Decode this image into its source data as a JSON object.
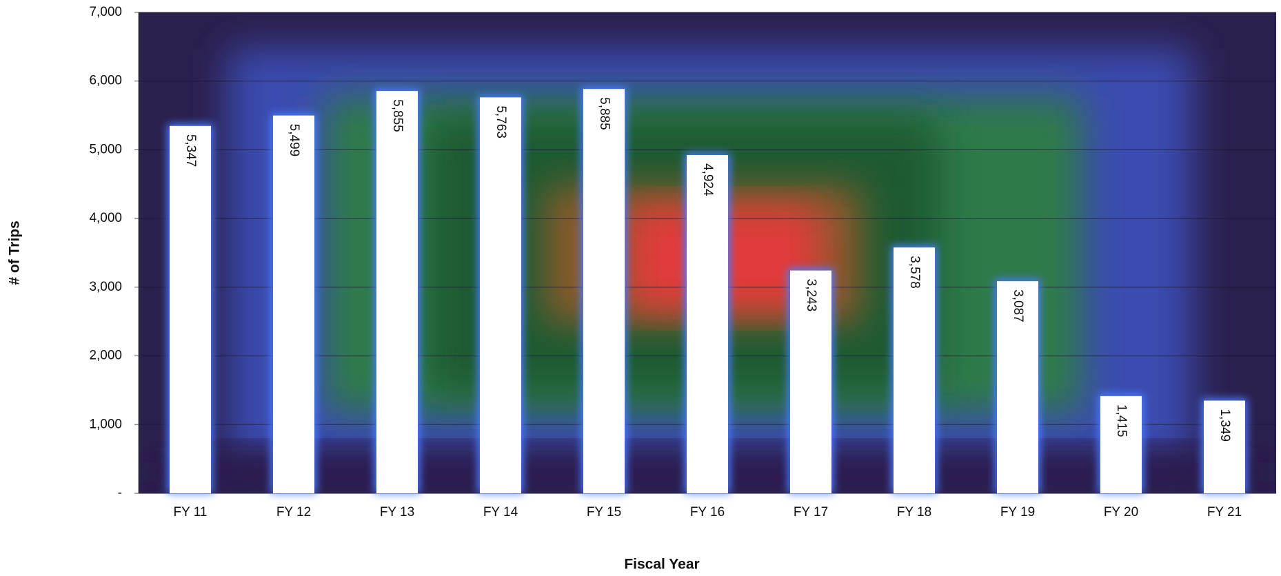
{
  "chart_data": {
    "type": "bar",
    "x_label": "Fiscal Year",
    "y_label": "# of Trips",
    "categories": [
      "FY 11",
      "FY 12",
      "FY 13",
      "FY 14",
      "FY 15",
      "FY 16",
      "FY 17",
      "FY 18",
      "FY 19",
      "FY 20",
      "FY 21"
    ],
    "values": [
      5347,
      5499,
      5855,
      5763,
      5885,
      4924,
      3243,
      3578,
      3087,
      1415,
      1349
    ],
    "value_labels": [
      "5,347",
      "5,499",
      "5,855",
      "5,763",
      "5,885",
      "4,924",
      "3,243",
      "3,578",
      "3,087",
      "1,415",
      "1,349"
    ],
    "color": "#ffffff",
    "ylim": [
      0,
      7000
    ],
    "yticks": [
      {
        "value": 0,
        "label": "-"
      },
      {
        "value": 1000,
        "label": "1,000"
      },
      {
        "value": 2000,
        "label": "2,000"
      },
      {
        "value": 3000,
        "label": "3,000"
      },
      {
        "value": 4000,
        "label": "4,000"
      },
      {
        "value": 5000,
        "label": "5,000"
      },
      {
        "value": 6000,
        "label": "6,000"
      },
      {
        "value": 7000,
        "label": "7,000"
      }
    ],
    "grid": true
  }
}
